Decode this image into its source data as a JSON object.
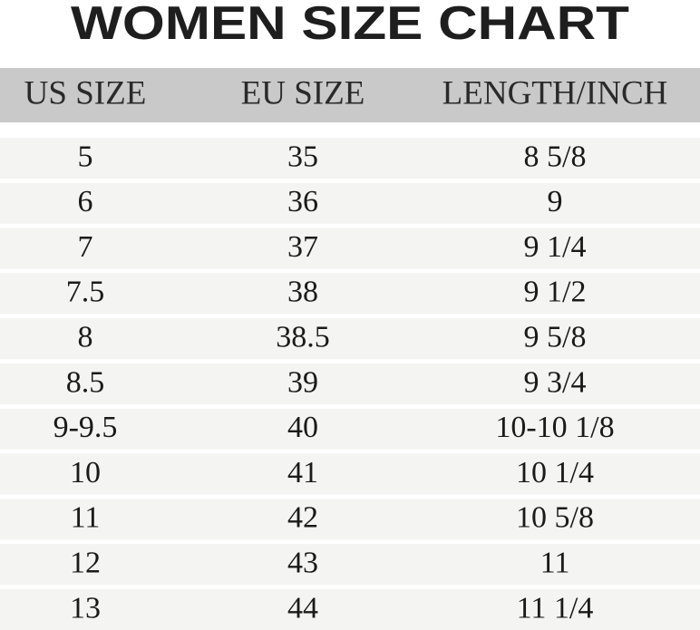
{
  "title": "WOMEN SIZE CHART",
  "table": {
    "headers": [
      "US SIZE",
      "EU SIZE",
      "LENGTH/INCH"
    ],
    "rows": [
      [
        "5",
        "35",
        "8 5/8"
      ],
      [
        "6",
        "36",
        "9"
      ],
      [
        "7",
        "37",
        "9 1/4"
      ],
      [
        "7.5",
        "38",
        "9 1/2"
      ],
      [
        "8",
        "38.5",
        "9 5/8"
      ],
      [
        "8.5",
        "39",
        "9 3/4"
      ],
      [
        "9-9.5",
        "40",
        "10-10 1/8"
      ],
      [
        "10",
        "41",
        "10 1/4"
      ],
      [
        "11",
        "42",
        "10 5/8"
      ],
      [
        "12",
        "43",
        "11"
      ],
      [
        "13",
        "44",
        "11 1/4"
      ]
    ]
  }
}
